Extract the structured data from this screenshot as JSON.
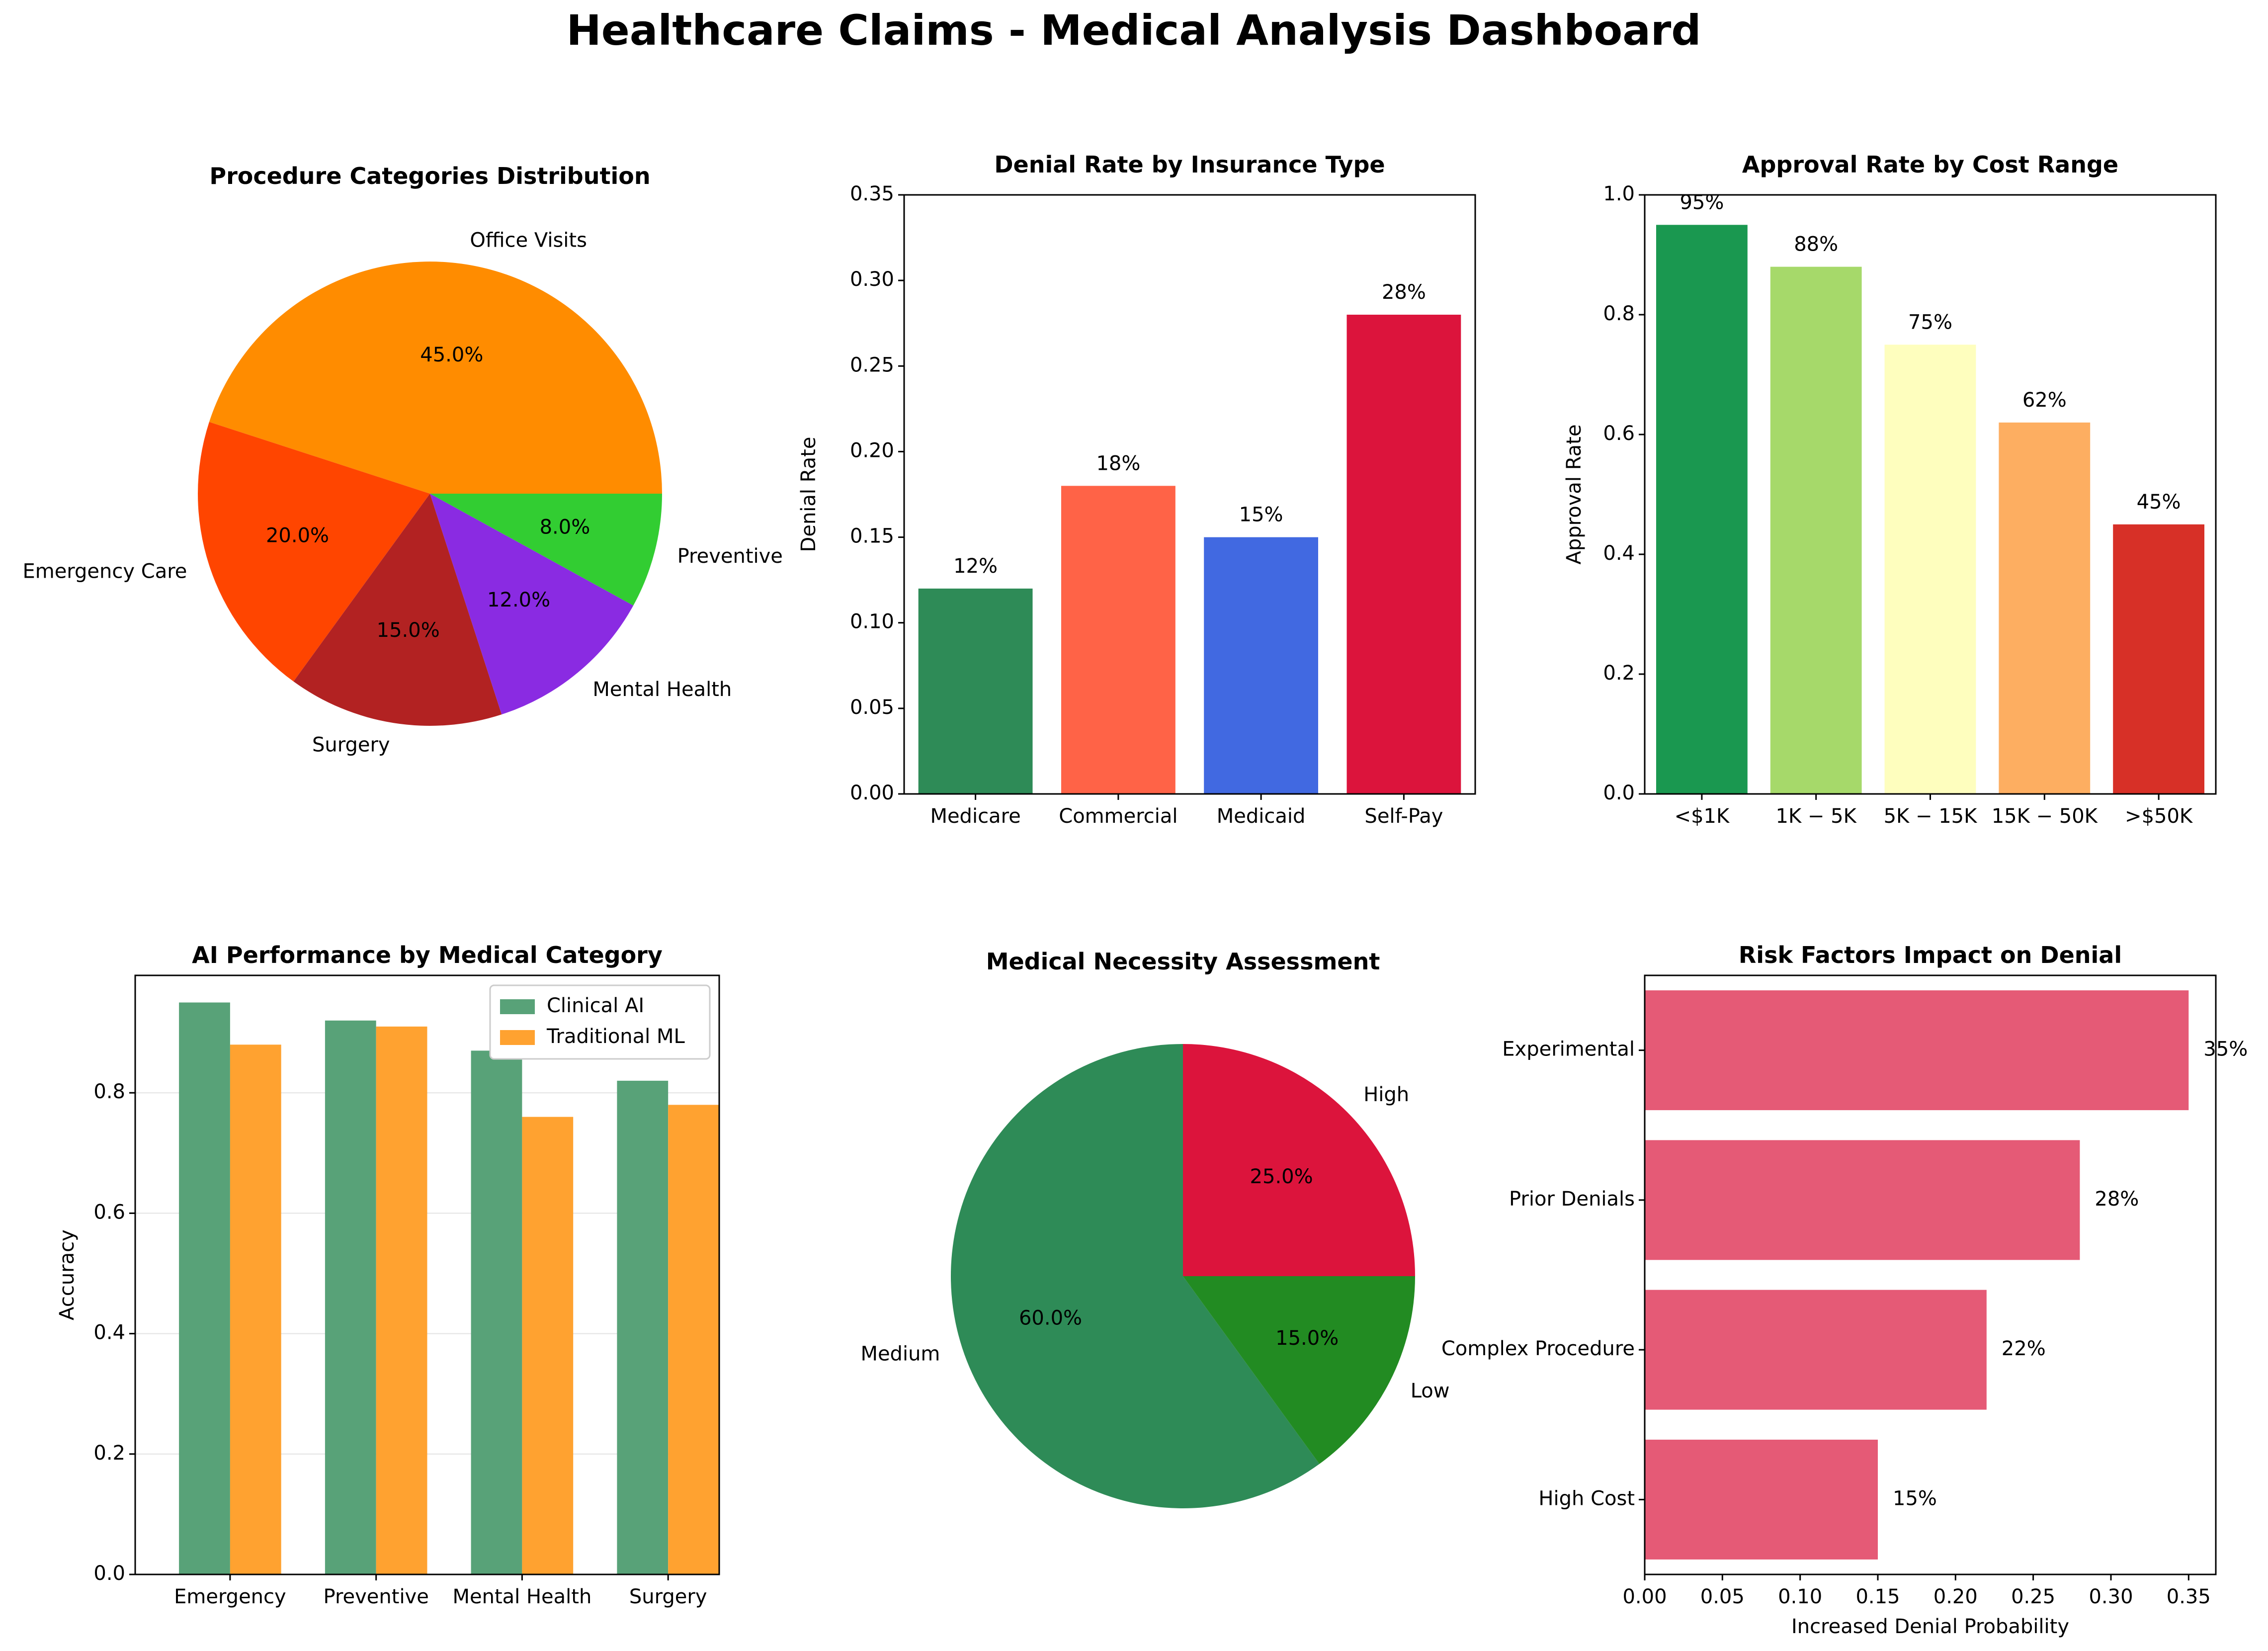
{
  "page_title": "Healthcare Claims - Medical Analysis Dashboard",
  "colors": {
    "office_visits": "#FF8C00",
    "emergency_care": "#FF4500",
    "surgery": "#B22222",
    "mental_health": "#8A2BE2",
    "preventive": "#32CD32",
    "medicare": "#2E8B57",
    "commercial": "#FF6347",
    "medicaid": "#4169E1",
    "self_pay": "#DC143C",
    "clinical_ai": "#58A278",
    "traditional_ml": "#FFA230",
    "medium": "#2E8B57",
    "high": "#DC143C",
    "low": "#228B22",
    "risk_bar": "#E55A76"
  },
  "chart_data": [
    {
      "id": "procedure_categories",
      "type": "pie",
      "title": "Procedure Categories Distribution",
      "labels": [
        "Office Visits",
        "Emergency Care",
        "Surgery",
        "Mental Health",
        "Preventive"
      ],
      "values": [
        45.0,
        20.0,
        15.0,
        12.0,
        8.0
      ],
      "pct_labels": [
        "45.0%",
        "20.0%",
        "15.0%",
        "12.0%",
        "8.0%"
      ],
      "colors": [
        "#FF8C00",
        "#FF4500",
        "#B22222",
        "#8A2BE2",
        "#32CD32"
      ]
    },
    {
      "id": "denial_rate_insurance",
      "type": "bar",
      "title": "Denial Rate by Insurance Type",
      "categories": [
        "Medicare",
        "Commercial",
        "Medicaid",
        "Self-Pay"
      ],
      "values": [
        0.12,
        0.18,
        0.15,
        0.28
      ],
      "value_labels": [
        "12%",
        "18%",
        "15%",
        "28%"
      ],
      "colors": [
        "#2E8B57",
        "#FF6347",
        "#4169E1",
        "#DC143C"
      ],
      "xlabel": "",
      "ylabel": "Denial Rate",
      "ylim": [
        0,
        0.35
      ],
      "yticks": [
        "0.00",
        "0.05",
        "0.10",
        "0.15",
        "0.20",
        "0.25",
        "0.30",
        "0.35"
      ]
    },
    {
      "id": "approval_rate_cost",
      "type": "bar",
      "title": "Approval Rate by Cost Range",
      "categories": [
        "<$1K",
        "$1K-$5K",
        "$5K-$15K",
        "$15K-$50K",
        ">$50K"
      ],
      "category_labels": [
        "<$1K",
        "1K − 5K",
        "5K − 15K",
        "15K − 50K",
        ">$50K"
      ],
      "values": [
        0.95,
        0.88,
        0.75,
        0.62,
        0.45
      ],
      "value_labels": [
        "95%",
        "88%",
        "75%",
        "62%",
        "45%"
      ],
      "colors": [
        "#1A9850",
        "#A6D96A",
        "#FEFEBE",
        "#FDAE61",
        "#D73027"
      ],
      "xlabel": "",
      "ylabel": "Approval Rate",
      "ylim": [
        0,
        1.0
      ],
      "yticks": [
        "0.0",
        "0.2",
        "0.4",
        "0.6",
        "0.8",
        "1.0"
      ]
    },
    {
      "id": "ai_performance",
      "type": "bar",
      "title": "AI Performance by Medical Category",
      "categories": [
        "Emergency",
        "Preventive",
        "Mental Health",
        "Surgery"
      ],
      "series": [
        {
          "name": "Clinical AI",
          "values": [
            0.95,
            0.92,
            0.87,
            0.82
          ],
          "color": "#58A278"
        },
        {
          "name": "Traditional ML",
          "values": [
            0.88,
            0.91,
            0.76,
            0.78
          ],
          "color": "#FFA230"
        }
      ],
      "xlabel": "",
      "ylabel": "Accuracy",
      "ylim": [
        0,
        0.995
      ],
      "yticks": [
        "0.0",
        "0.2",
        "0.4",
        "0.6",
        "0.8"
      ],
      "grid": "horizontal",
      "legend": "top-right"
    },
    {
      "id": "medical_necessity",
      "type": "pie",
      "title": "Medical Necessity Assessment",
      "labels": [
        "High",
        "Medium",
        "Low"
      ],
      "values": [
        25.0,
        60.0,
        15.0
      ],
      "pct_labels": [
        "25.0%",
        "60.0%",
        "15.0%"
      ],
      "colors": [
        "#DC143C",
        "#2E8B57",
        "#228B22"
      ]
    },
    {
      "id": "risk_factors",
      "type": "bar",
      "orientation": "horizontal",
      "title": "Risk Factors Impact on Denial",
      "categories": [
        "High Cost",
        "Complex Procedure",
        "Prior Denials",
        "Experimental"
      ],
      "values": [
        0.15,
        0.22,
        0.28,
        0.35
      ],
      "value_labels": [
        "15%",
        "22%",
        "28%",
        "35%"
      ],
      "color": "#E55A76",
      "xlabel": "Increased Denial Probability",
      "ylabel": "",
      "xlim": [
        0,
        0.3675
      ],
      "xticks": [
        "0.00",
        "0.05",
        "0.10",
        "0.15",
        "0.20",
        "0.25",
        "0.30",
        "0.35"
      ]
    }
  ]
}
